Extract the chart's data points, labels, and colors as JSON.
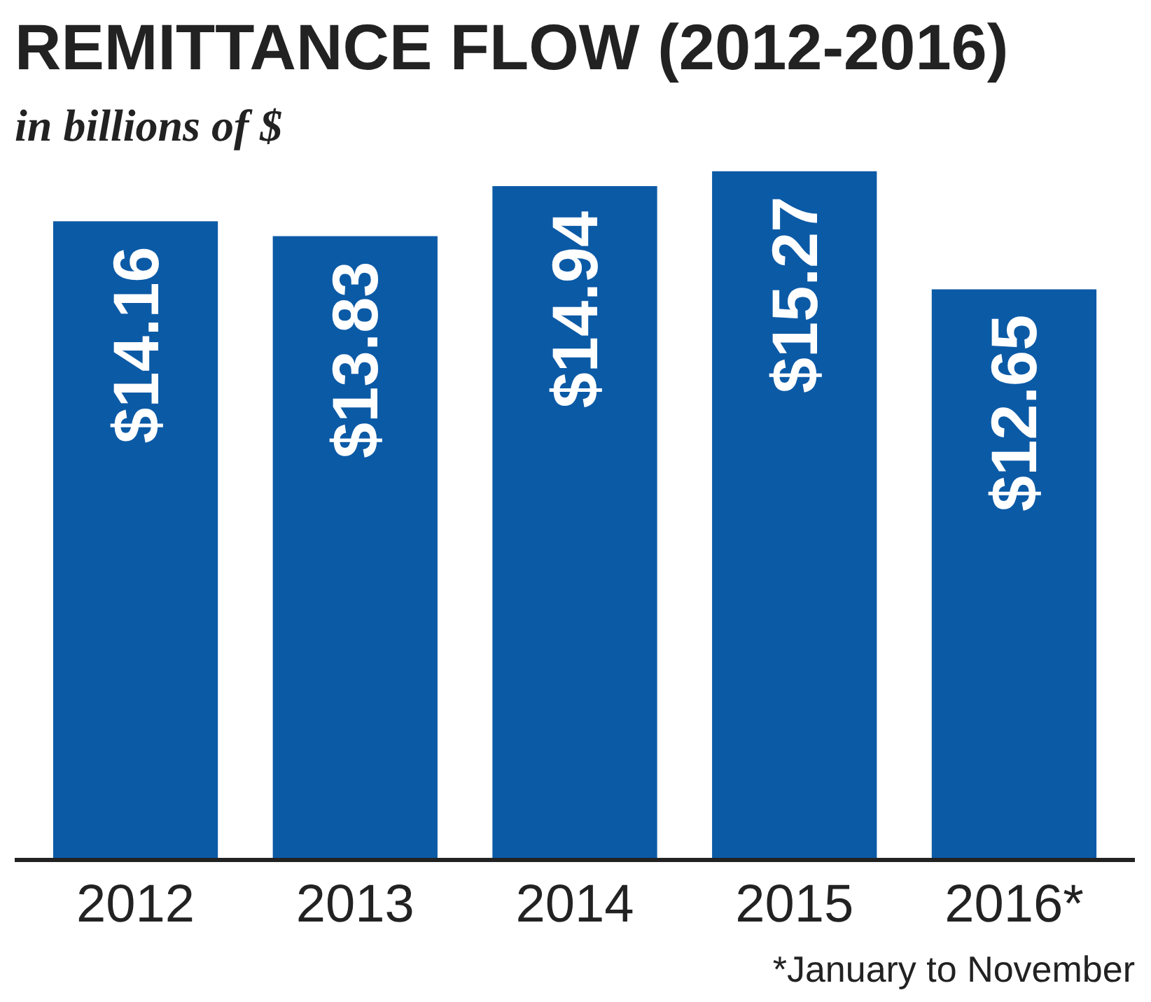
{
  "chart_data": {
    "type": "bar",
    "title": "REMITTANCE FLOW (2012-2016)",
    "subtitle": "in billions of $",
    "categories": [
      "2012",
      "2013",
      "2014",
      "2015",
      "2016*"
    ],
    "values": [
      14.16,
      13.83,
      14.94,
      15.27,
      12.65
    ],
    "value_labels": [
      "$14.16",
      "$13.83",
      "$14.94",
      "$15.27",
      "$12.65"
    ],
    "color": "#0b5aa6",
    "grid": false,
    "annotations": [
      "*January to November"
    ]
  }
}
